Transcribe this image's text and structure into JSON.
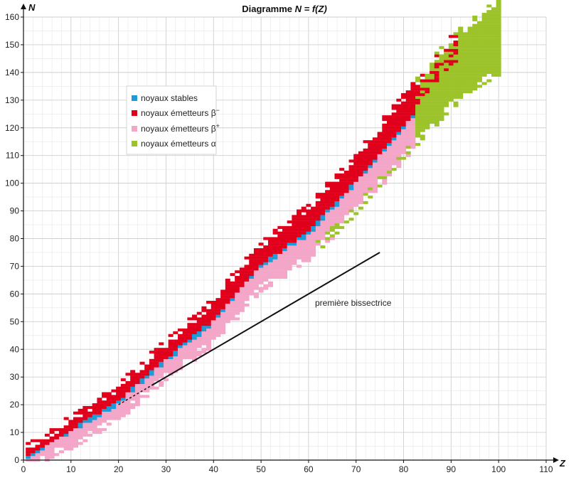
{
  "chart_data": {
    "type": "scatter",
    "title_prefix": "Diagramme ",
    "title_formula": "N = f(Z)",
    "xlabel": "Z",
    "ylabel": "N",
    "xlim": [
      0,
      110
    ],
    "ylim": [
      0,
      160
    ],
    "x_ticks": [
      0,
      10,
      20,
      30,
      40,
      50,
      60,
      70,
      80,
      90,
      100,
      110
    ],
    "y_ticks": [
      0,
      10,
      20,
      30,
      40,
      50,
      60,
      70,
      80,
      90,
      100,
      110,
      120,
      130,
      140,
      150,
      160
    ],
    "grid": true,
    "legend_position": "top-left",
    "series": [
      {
        "name": "noyaux stables",
        "color": "#1e9ad6",
        "offset": 0
      },
      {
        "name": "noyaux émetteurs β⁻",
        "color": "#e0001b",
        "offset": 2.5
      },
      {
        "name": "noyaux émetteurs β⁺",
        "color": "#f4a6c8",
        "offset": -2.5
      },
      {
        "name": "noyaux émetteurs α",
        "color": "#9cc42a",
        "offset": 0
      }
    ],
    "stability_band": [
      [
        0,
        0
      ],
      [
        10,
        10
      ],
      [
        20,
        21
      ],
      [
        30,
        36
      ],
      [
        40,
        50
      ],
      [
        50,
        70
      ],
      [
        60,
        82
      ],
      [
        70,
        100
      ],
      [
        80,
        120
      ],
      [
        90,
        140
      ],
      [
        100,
        153
      ]
    ],
    "alpha_band": {
      "z_start": 83,
      "z_end": 100
    },
    "reference_line": {
      "label": "première bissectrice",
      "from": [
        27,
        27
      ],
      "to": [
        75,
        75
      ]
    }
  },
  "legend": {
    "stables": "noyaux stables",
    "beta_minus": "noyaux émetteurs β",
    "beta_minus_sup": "−",
    "beta_plus": "noyaux émetteurs β",
    "beta_plus_sup": "+",
    "alpha": "noyaux émetteurs α"
  }
}
